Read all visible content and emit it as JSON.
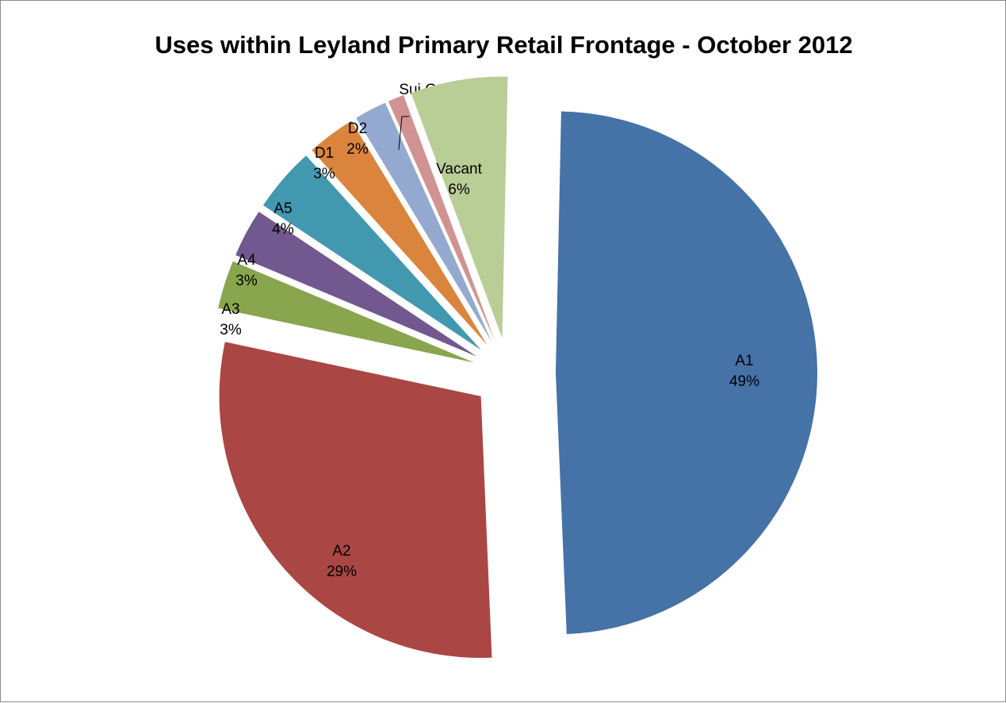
{
  "chart_data": {
    "type": "pie",
    "title": "Uses within Leyland Primary Retail Frontage - October 2012",
    "slices": [
      {
        "name": "A1",
        "value": 49,
        "label": "49%",
        "color": "#4572a7"
      },
      {
        "name": "A2",
        "value": 29,
        "label": "29%",
        "color": "#aa4643"
      },
      {
        "name": "A3",
        "value": 3,
        "label": "3%",
        "color": "#89a54e"
      },
      {
        "name": "A4",
        "value": 3,
        "label": "3%",
        "color": "#71588f"
      },
      {
        "name": "A5",
        "value": 4,
        "label": "4%",
        "color": "#4198af"
      },
      {
        "name": "D1",
        "value": 3,
        "label": "3%",
        "color": "#db843d"
      },
      {
        "name": "D2",
        "value": 2,
        "label": "2%",
        "color": "#93a9cf"
      },
      {
        "name": "Sui Generis",
        "value": 1,
        "label": "1%",
        "color": "#d19392"
      },
      {
        "name": "Vacant",
        "value": 6,
        "label": "6%",
        "color": "#b9cd96"
      }
    ],
    "legend": "none",
    "data_labels": "category name and percentage"
  }
}
